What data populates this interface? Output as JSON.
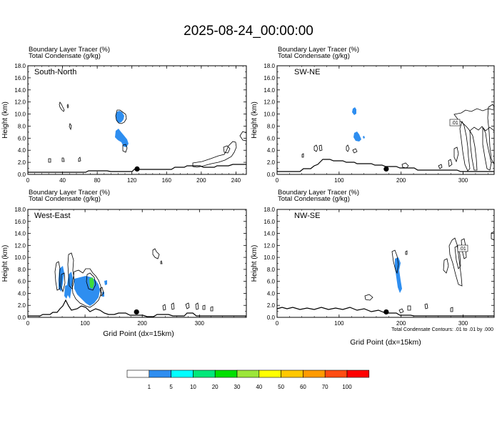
{
  "title": "2025-08-24_00:00:00",
  "header_line1": "Boundary Layer Tracer   (%)",
  "header_line2": "Total Condensate   (g/kg)",
  "y_axis_label": "Height (km)",
  "x_axis_label": "Grid Point (dx=15km)",
  "contour_note": "Total Condensate Contours: .01 to .01 by .000",
  "contour_value_label": ".01",
  "colors": {
    "tracer_blue": "#2e8ef0",
    "tracer_green": "#3ddc3a",
    "marker": "#000000"
  },
  "chart_data": [
    {
      "type": "heatmap",
      "panel": "South-North",
      "ylim": [
        0,
        18
      ],
      "xlim": [
        0,
        252
      ],
      "x_ticks": [
        0,
        40,
        80,
        120,
        160,
        200,
        240
      ],
      "y_ticks": [
        "0.0",
        "2.0",
        "4.0",
        "6.0",
        "8.0",
        "10.0",
        "12.0",
        "14.0",
        "16.0",
        "18.0"
      ],
      "marker": {
        "x": 126,
        "y": 0.9
      }
    },
    {
      "type": "heatmap",
      "panel": "SW-NE",
      "ylim": [
        0,
        18
      ],
      "xlim": [
        0,
        350
      ],
      "x_ticks": [
        0,
        100,
        200,
        300
      ],
      "y_ticks": [
        "0.0",
        "2.0",
        "4.0",
        "6.0",
        "8.0",
        "10.0",
        "12.0",
        "14.0",
        "16.0",
        "18.0"
      ],
      "marker": {
        "x": 176,
        "y": 0.9
      }
    },
    {
      "type": "heatmap",
      "panel": "West-East",
      "ylim": [
        0,
        18
      ],
      "xlim": [
        0,
        382
      ],
      "x_ticks": [
        0,
        100,
        200,
        300
      ],
      "y_ticks": [
        "0.0",
        "2.0",
        "4.0",
        "6.0",
        "8.0",
        "10.0",
        "12.0",
        "14.0",
        "16.0",
        "18.0"
      ],
      "marker": {
        "x": 190,
        "y": 0.9
      }
    },
    {
      "type": "heatmap",
      "panel": "NW-SE",
      "ylim": [
        0,
        18
      ],
      "xlim": [
        0,
        350
      ],
      "x_ticks": [
        0,
        100,
        200,
        300
      ],
      "y_ticks": [
        "0.0",
        "2.0",
        "4.0",
        "6.0",
        "8.0",
        "10.0",
        "12.0",
        "14.0",
        "16.0",
        "18.0"
      ],
      "marker": {
        "x": 176,
        "y": 0.9
      }
    }
  ],
  "colorbar": {
    "labels": [
      "1",
      "5",
      "10",
      "20",
      "30",
      "40",
      "50",
      "60",
      "70",
      "100"
    ],
    "colors": [
      "#ffffff",
      "#2e8ef0",
      "#00ffff",
      "#00e87a",
      "#00e000",
      "#9ce63a",
      "#ffff00",
      "#ffc800",
      "#ff9b00",
      "#ff4d12",
      "#ff0000"
    ]
  }
}
